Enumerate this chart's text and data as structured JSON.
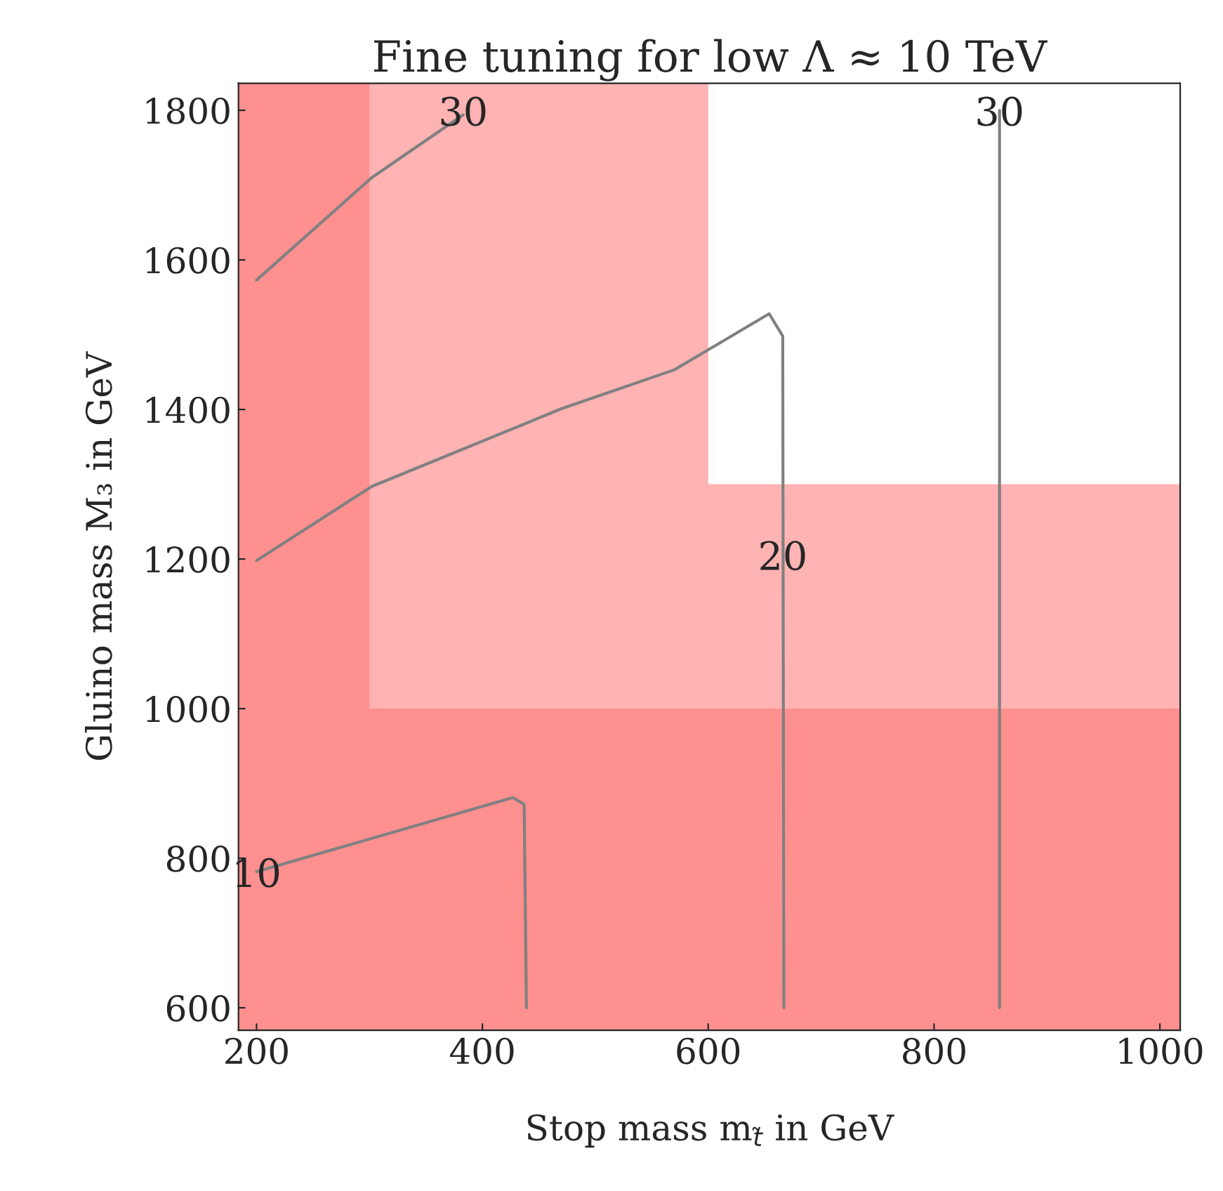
{
  "chart_data": {
    "type": "line",
    "title": "Fine tuning for low Λ ≈ 10 TeV",
    "xlabel": "Stop mass m$_{t̃}$ in GeV",
    "ylabel": "Gluino mass M₃ in GeV",
    "xlim": [
      184,
      1018
    ],
    "ylim": [
      570,
      1836
    ],
    "xticks": [
      200,
      400,
      600,
      800,
      1000
    ],
    "yticks": [
      600,
      800,
      1000,
      1200,
      1400,
      1600,
      1800
    ],
    "grid": false,
    "legend": false,
    "line_style": "solid",
    "marker": "none",
    "bands": [
      {
        "axis": "x",
        "from": 184,
        "to": 600,
        "color": "#ffb3b3"
      },
      {
        "axis": "y",
        "from": 570,
        "to": 1300,
        "color": "#ffb3b3"
      },
      {
        "axis": "x",
        "from": 184,
        "to": 300,
        "color": "#ff9090"
      },
      {
        "axis": "y",
        "from": 570,
        "to": 1000,
        "color": "#ff9090"
      }
    ],
    "series": [
      {
        "color": "#808080",
        "x": [
          200,
          302,
          383
        ],
        "values": [
          1573,
          1710,
          1794
        ]
      },
      {
        "color": "#808080",
        "x": [
          200,
          302,
          470,
          570,
          654,
          666,
          667
        ],
        "values": [
          1198,
          1297,
          1401,
          1453,
          1528,
          1498,
          600
        ]
      },
      {
        "color": "#808080",
        "x": [
          200,
          427,
          437,
          439
        ],
        "values": [
          782,
          881,
          872,
          600
        ]
      },
      {
        "color": "#808080",
        "x": [
          858,
          858
        ],
        "values": [
          1800,
          600
        ]
      }
    ],
    "annotations": [
      {
        "text": "30",
        "x": 383,
        "y": 1794
      },
      {
        "text": "30",
        "x": 858,
        "y": 1794
      },
      {
        "text": "20",
        "x": 666,
        "y": 1200
      },
      {
        "text": "10",
        "x": 200,
        "y": 776
      }
    ]
  }
}
